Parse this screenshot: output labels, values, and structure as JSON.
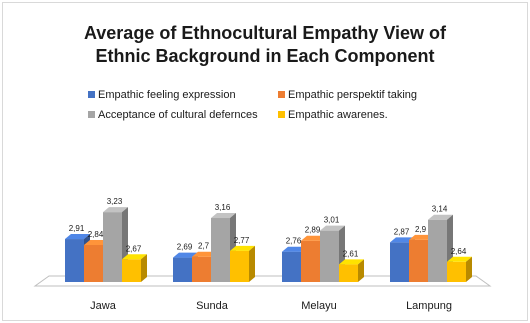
{
  "chart_data": {
    "type": "bar",
    "title_lines": [
      "Average of Ethnocultural Empathy View of",
      "Ethnic Background in Each Component"
    ],
    "categories": [
      "Jawa",
      "Sunda",
      "Melayu",
      "Lampung"
    ],
    "series": [
      {
        "name": "Empathic feeling expression",
        "color": "#4472C4",
        "values": [
          2.91,
          2.69,
          2.76,
          2.87
        ],
        "labels": [
          "2,91",
          "2,69",
          "2,76",
          "2,87"
        ]
      },
      {
        "name": "Empathic perspektif taking",
        "color": "#ED7D31",
        "values": [
          2.84,
          2.7,
          2.89,
          2.9
        ],
        "labels": [
          "2,84",
          "2,7",
          "2,89",
          "2,9"
        ]
      },
      {
        "name": "Acceptance of cultural defernces",
        "color": "#A5A5A5",
        "values": [
          3.23,
          3.16,
          3.01,
          3.14
        ],
        "labels": [
          "3,23",
          "3,16",
          "3,01",
          "3,14"
        ]
      },
      {
        "name": "Empathic awarenes.",
        "color": "#FFC000",
        "values": [
          2.67,
          2.77,
          2.61,
          2.64
        ],
        "labels": [
          "2,67",
          "2,77",
          "2,61",
          "2,64"
        ]
      }
    ],
    "legend_position": "top",
    "grid": false,
    "style": "3d-clustered-column"
  }
}
